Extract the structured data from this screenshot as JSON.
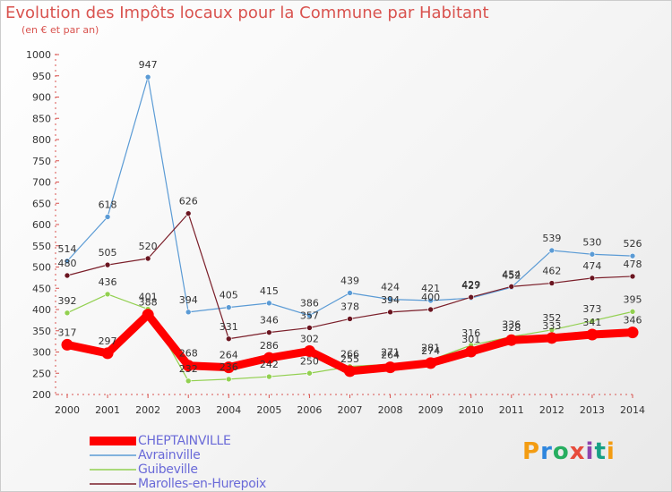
{
  "chart_data": {
    "type": "line",
    "title": "Evolution des Impôts locaux pour la Commune par Habitant",
    "subtitle": "(en € et par an)",
    "x": [
      "2000",
      "2001",
      "2002",
      "2003",
      "2004",
      "2005",
      "2006",
      "2007",
      "2008",
      "2009",
      "2010",
      "2011",
      "2012",
      "2013",
      "2014"
    ],
    "yticks": [
      "1000",
      "950",
      "900",
      "850",
      "800",
      "750",
      "700",
      "650",
      "600",
      "550",
      "500",
      "450",
      "400",
      "350",
      "300",
      "250",
      "200"
    ],
    "ylim": [
      200,
      1000
    ],
    "grid": false,
    "legend_position": "bottom-left",
    "series": [
      {
        "name": "CHEPTAINVILLE",
        "color": "#ff0000",
        "values": [
          317,
          297,
          388,
          268,
          264,
          286,
          302,
          255,
          264,
          274,
          301,
          328,
          333,
          341,
          346
        ],
        "labels": [
          "317",
          "297",
          "388",
          "268",
          "264",
          "286",
          "302",
          "255",
          "264",
          "274",
          "301",
          "328",
          "333",
          "341",
          "346"
        ]
      },
      {
        "name": "Avrainville",
        "color": "#5b9bd5",
        "values": [
          514,
          618,
          947,
          394,
          405,
          415,
          386,
          439,
          424,
          421,
          427,
          452,
          539,
          530,
          526
        ],
        "labels": [
          "514",
          "618",
          "947",
          "394",
          "405",
          "415",
          "386",
          "439",
          "424",
          "421",
          "427",
          "452",
          "539",
          "530",
          "526"
        ]
      },
      {
        "name": "Guibeville",
        "color": "#92d050",
        "values": [
          392,
          436,
          401,
          232,
          236,
          242,
          250,
          266,
          271,
          281,
          316,
          336,
          352,
          373,
          395
        ],
        "labels": [
          "392",
          "436",
          "401",
          "232",
          "236",
          "242",
          "250",
          "266",
          "271",
          "281",
          "316",
          "336",
          "352",
          "373",
          "395"
        ]
      },
      {
        "name": "Marolles-en-Hurepoix",
        "color": "#7b1f2a",
        "values": [
          480,
          505,
          520,
          626,
          331,
          346,
          357,
          378,
          394,
          400,
          429,
          454,
          462,
          474,
          478
        ],
        "labels": [
          "480",
          "505",
          "520",
          "626",
          "331",
          "346",
          "357",
          "378",
          "394",
          "400",
          "429",
          "454",
          "462",
          "474",
          "478"
        ]
      }
    ]
  },
  "logo": {
    "text": "Proxiti",
    "letters": [
      "P",
      "r",
      "o",
      "x",
      "i",
      "t",
      "i"
    ]
  }
}
